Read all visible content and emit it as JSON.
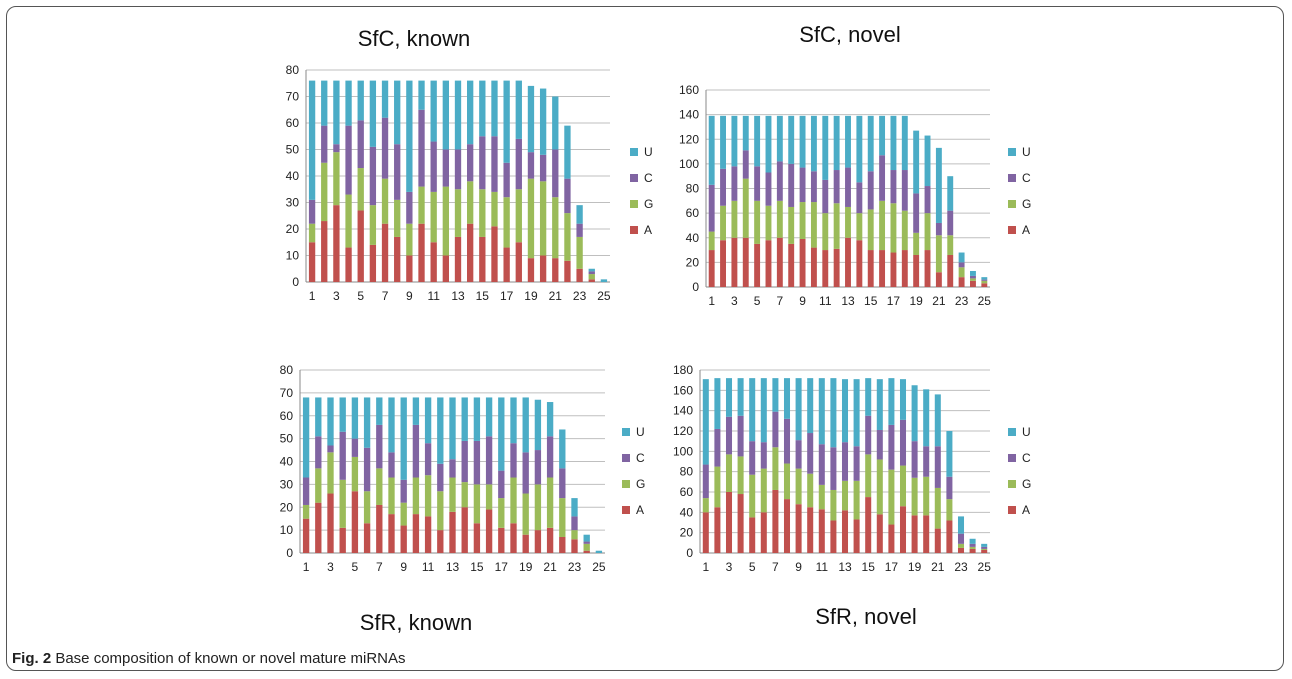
{
  "colors": {
    "U": "#4BACC6",
    "C": "#8064A2",
    "G": "#9BBB59",
    "A": "#C0504D",
    "axis": "#888888",
    "grid": "#bfbfbf",
    "text": "#222222"
  },
  "caption": {
    "label": "Fig. 2",
    "text": " Base composition of known or novel mature miRNAs"
  },
  "chart_data": [
    {
      "type": "bar",
      "stacked": true,
      "title": "SfC, known",
      "categories": [
        "1",
        "2",
        "3",
        "4",
        "5",
        "6",
        "7",
        "8",
        "9",
        "10",
        "11",
        "12",
        "13",
        "14",
        "15",
        "16",
        "17",
        "18",
        "19",
        "20",
        "21",
        "22",
        "23",
        "24",
        "25"
      ],
      "x_tick_labels": [
        "1",
        "3",
        "5",
        "7",
        "9",
        "11",
        "13",
        "15",
        "17",
        "19",
        "21",
        "23",
        "25"
      ],
      "ylim": [
        0,
        80
      ],
      "yticks": [
        0,
        10,
        20,
        30,
        40,
        50,
        60,
        70,
        80
      ],
      "legend": [
        "U",
        "C",
        "G",
        "A"
      ],
      "legend_position": "right",
      "grid": true,
      "series": [
        {
          "name": "A",
          "values": [
            15,
            23,
            29,
            13,
            27,
            14,
            22,
            17,
            10,
            22,
            15,
            10,
            17,
            22,
            17,
            21,
            13,
            15,
            9,
            10,
            9,
            8,
            5,
            1,
            0
          ]
        },
        {
          "name": "G",
          "values": [
            7,
            22,
            20,
            20,
            16,
            15,
            17,
            14,
            12,
            14,
            19,
            26,
            18,
            16,
            18,
            13,
            19,
            20,
            30,
            28,
            23,
            18,
            12,
            2,
            0
          ]
        },
        {
          "name": "C",
          "values": [
            9,
            14,
            3,
            26,
            18,
            22,
            23,
            21,
            12,
            29,
            19,
            14,
            15,
            14,
            20,
            21,
            13,
            19,
            10,
            10,
            18,
            13,
            5,
            1,
            0
          ]
        },
        {
          "name": "U",
          "values": [
            45,
            17,
            24,
            17,
            15,
            25,
            14,
            24,
            42,
            11,
            23,
            26,
            26,
            24,
            21,
            21,
            31,
            22,
            25,
            25,
            20,
            20,
            7,
            1,
            1
          ]
        }
      ]
    },
    {
      "type": "bar",
      "stacked": true,
      "title": "SfC, novel",
      "categories": [
        "1",
        "2",
        "3",
        "4",
        "5",
        "6",
        "7",
        "8",
        "9",
        "10",
        "11",
        "12",
        "13",
        "14",
        "15",
        "16",
        "17",
        "18",
        "19",
        "20",
        "21",
        "22",
        "23",
        "24",
        "25"
      ],
      "x_tick_labels": [
        "1",
        "3",
        "5",
        "7",
        "9",
        "11",
        "13",
        "15",
        "17",
        "19",
        "21",
        "23",
        "25"
      ],
      "ylim": [
        0,
        160
      ],
      "yticks": [
        0,
        20,
        40,
        60,
        80,
        100,
        120,
        140,
        160
      ],
      "legend": [
        "U",
        "C",
        "G",
        "A"
      ],
      "legend_position": "right",
      "grid": true,
      "series": [
        {
          "name": "A",
          "values": [
            30,
            38,
            40,
            40,
            35,
            38,
            40,
            35,
            39,
            32,
            30,
            31,
            40,
            38,
            30,
            30,
            28,
            30,
            26,
            30,
            12,
            26,
            8,
            5,
            3
          ]
        },
        {
          "name": "G",
          "values": [
            15,
            28,
            30,
            48,
            35,
            28,
            30,
            30,
            30,
            37,
            30,
            37,
            25,
            22,
            33,
            40,
            40,
            32,
            18,
            30,
            30,
            16,
            8,
            2,
            2
          ]
        },
        {
          "name": "C",
          "values": [
            38,
            30,
            28,
            23,
            28,
            27,
            32,
            35,
            28,
            25,
            27,
            27,
            32,
            25,
            31,
            37,
            27,
            33,
            32,
            22,
            10,
            20,
            4,
            2,
            1
          ]
        },
        {
          "name": "U",
          "values": [
            56,
            43,
            41,
            28,
            41,
            46,
            37,
            39,
            42,
            45,
            52,
            44,
            42,
            54,
            45,
            32,
            44,
            44,
            51,
            41,
            61,
            28,
            8,
            4,
            2
          ]
        }
      ]
    },
    {
      "type": "bar",
      "stacked": true,
      "title": "SfR, known",
      "categories": [
        "1",
        "2",
        "3",
        "4",
        "5",
        "6",
        "7",
        "8",
        "9",
        "10",
        "11",
        "12",
        "13",
        "14",
        "15",
        "16",
        "17",
        "18",
        "19",
        "20",
        "21",
        "22",
        "23",
        "24",
        "25"
      ],
      "x_tick_labels": [
        "1",
        "3",
        "5",
        "7",
        "9",
        "11",
        "13",
        "15",
        "17",
        "19",
        "21",
        "23",
        "25"
      ],
      "ylim": [
        0,
        80
      ],
      "yticks": [
        0,
        10,
        20,
        30,
        40,
        50,
        60,
        70,
        80
      ],
      "legend": [
        "U",
        "C",
        "G",
        "A"
      ],
      "legend_position": "right",
      "grid": true,
      "series": [
        {
          "name": "A",
          "values": [
            15,
            22,
            26,
            11,
            27,
            13,
            21,
            17,
            12,
            17,
            16,
            10,
            18,
            20,
            13,
            19,
            11,
            13,
            8,
            10,
            11,
            7,
            6,
            1,
            0
          ]
        },
        {
          "name": "G",
          "values": [
            6,
            15,
            18,
            21,
            15,
            14,
            16,
            16,
            10,
            16,
            18,
            17,
            15,
            11,
            17,
            11,
            13,
            20,
            18,
            20,
            22,
            17,
            4,
            3,
            0
          ]
        },
        {
          "name": "C",
          "values": [
            12,
            14,
            3,
            21,
            8,
            19,
            19,
            11,
            10,
            23,
            14,
            12,
            8,
            18,
            19,
            21,
            12,
            15,
            18,
            15,
            18,
            13,
            6,
            1,
            0
          ]
        },
        {
          "name": "U",
          "values": [
            35,
            17,
            21,
            15,
            18,
            22,
            12,
            24,
            36,
            12,
            20,
            29,
            27,
            19,
            19,
            17,
            32,
            20,
            24,
            22,
            15,
            17,
            8,
            3,
            1
          ]
        }
      ]
    },
    {
      "type": "bar",
      "stacked": true,
      "title": "SfR, novel",
      "categories": [
        "1",
        "2",
        "3",
        "4",
        "5",
        "6",
        "7",
        "8",
        "9",
        "10",
        "11",
        "12",
        "13",
        "14",
        "15",
        "16",
        "17",
        "18",
        "19",
        "20",
        "21",
        "22",
        "23",
        "24",
        "25"
      ],
      "x_tick_labels": [
        "1",
        "3",
        "5",
        "7",
        "9",
        "11",
        "13",
        "15",
        "17",
        "19",
        "21",
        "23",
        "25"
      ],
      "ylim": [
        0,
        180
      ],
      "yticks": [
        0,
        20,
        40,
        60,
        80,
        100,
        120,
        140,
        160,
        180
      ],
      "legend": [
        "U",
        "C",
        "G",
        "A"
      ],
      "legend_position": "right",
      "grid": true,
      "series": [
        {
          "name": "A",
          "values": [
            40,
            45,
            60,
            58,
            35,
            40,
            62,
            53,
            48,
            45,
            43,
            32,
            42,
            33,
            55,
            38,
            28,
            46,
            37,
            37,
            24,
            32,
            5,
            4,
            3
          ]
        },
        {
          "name": "G",
          "values": [
            14,
            40,
            37,
            37,
            42,
            43,
            42,
            35,
            35,
            33,
            24,
            30,
            29,
            38,
            42,
            54,
            54,
            40,
            37,
            38,
            40,
            21,
            4,
            2,
            1
          ]
        },
        {
          "name": "C",
          "values": [
            33,
            37,
            37,
            40,
            33,
            26,
            35,
            44,
            28,
            40,
            40,
            42,
            38,
            34,
            38,
            29,
            44,
            45,
            36,
            30,
            41,
            22,
            10,
            3,
            2
          ]
        },
        {
          "name": "U",
          "values": [
            84,
            50,
            38,
            37,
            62,
            63,
            33,
            40,
            61,
            54,
            65,
            68,
            62,
            66,
            37,
            50,
            46,
            40,
            55,
            56,
            51,
            45,
            17,
            5,
            3
          ]
        }
      ]
    }
  ]
}
